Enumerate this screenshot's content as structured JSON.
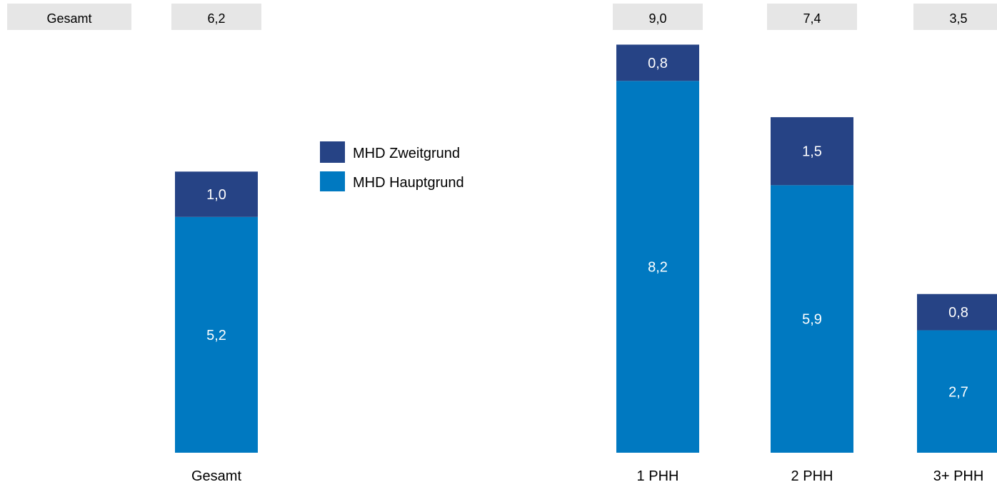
{
  "row_label": "Gesamt",
  "legend": {
    "position": "center",
    "entries": [
      {
        "name": "MHD Zweitgrund",
        "color": "#264385"
      },
      {
        "name": "MHD Hauptgrund",
        "color": "#0079C1"
      }
    ]
  },
  "chart_data": {
    "type": "bar",
    "stacked": true,
    "title": "",
    "xlabel": "",
    "ylabel": "",
    "categories": [
      "Gesamt",
      "1 PHH",
      "2 PHH",
      "3+ PHH"
    ],
    "totals": [
      "6,2",
      "9,0",
      "7,4",
      "3,5"
    ],
    "series": [
      {
        "name": "MHD Hauptgrund",
        "color": "#0079C1",
        "values": [
          5.2,
          8.2,
          5.9,
          2.7
        ],
        "labels": [
          "5,2",
          "8,2",
          "5,9",
          "2,7"
        ]
      },
      {
        "name": "MHD Zweitgrund",
        "color": "#264385",
        "values": [
          1.0,
          0.8,
          1.5,
          0.8
        ],
        "labels": [
          "1,0",
          "0,8",
          "1,5",
          "0,8"
        ]
      }
    ],
    "ylim": [
      0,
      9.0
    ],
    "axes_visible": false,
    "grid": false
  },
  "colors": {
    "total_box": "#E6E6E6",
    "label_text": "#000000",
    "bar_label_text": "#ffffff"
  }
}
